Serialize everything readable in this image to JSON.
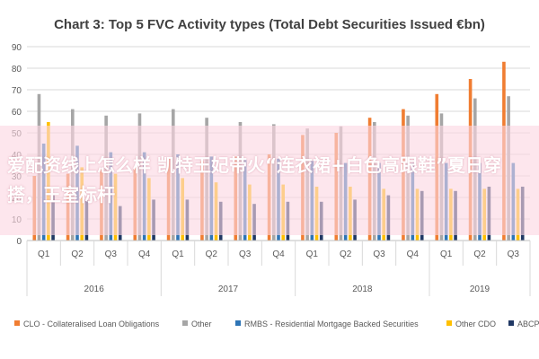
{
  "chart_data": {
    "type": "bar",
    "title": "Chart 3: Top 5 FVC Activity types (Total Debt Securities Issued €bn)",
    "ylim": [
      0,
      90
    ],
    "yticks": [
      0,
      10,
      20,
      30,
      40,
      50,
      60,
      70,
      80,
      90
    ],
    "categories": [
      "Q1",
      "Q2",
      "Q3",
      "Q4",
      "Q1",
      "Q2",
      "Q3",
      "Q4",
      "Q1",
      "Q2",
      "Q3",
      "Q4",
      "Q1",
      "Q2",
      "Q3"
    ],
    "years": [
      {
        "label": "2016",
        "quarters": 4
      },
      {
        "label": "2017",
        "quarters": 4
      },
      {
        "label": "2018",
        "quarters": 4
      },
      {
        "label": "2019",
        "quarters": 3
      }
    ],
    "grid": true,
    "legend_position": "bottom",
    "series": [
      {
        "name": "CLO - Collateralised Loan Obligations",
        "color": "#f07d32",
        "values": [
          30,
          31,
          33,
          34,
          38,
          37,
          39,
          40,
          49,
          50,
          57,
          61,
          68,
          75,
          83
        ]
      },
      {
        "name": "Other",
        "color": "#a6a6a6",
        "values": [
          68,
          61,
          58,
          59,
          61,
          57,
          55,
          54,
          52,
          53,
          55,
          58,
          59,
          66,
          67
        ]
      },
      {
        "name": "RMBS - Residential Mortgage Backed Securities",
        "color": "#2e75b6",
        "values": [
          45,
          44,
          41,
          41,
          40,
          39,
          38,
          38,
          37,
          36,
          36,
          36,
          36,
          36,
          36
        ]
      },
      {
        "name": "Other CDO",
        "color": "#ffc000",
        "values": [
          55,
          34,
          31,
          29,
          29,
          27,
          26,
          26,
          25,
          25,
          24,
          24,
          24,
          24,
          24
        ]
      },
      {
        "name": "ABCP",
        "color": "#203864",
        "values": [
          21,
          19,
          16,
          19,
          19,
          18,
          17,
          18,
          18,
          19,
          21,
          23,
          23,
          25,
          25
        ]
      }
    ]
  },
  "overlay": {
    "text": "爱配资线上怎么样 凯特王妃带火“连衣裙+白色高跟鞋”夏日穿搭，王室标杆"
  }
}
